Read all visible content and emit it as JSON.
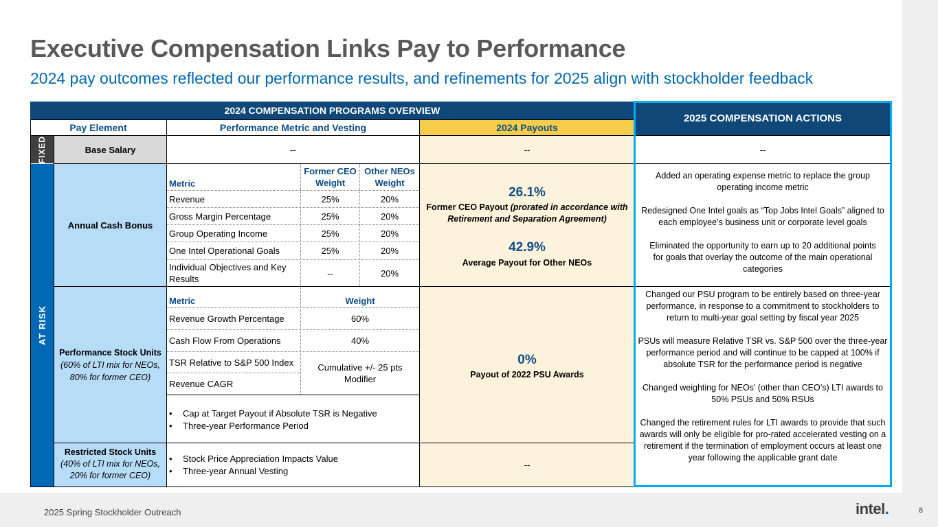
{
  "title": "Executive Compensation Links Pay to Performance",
  "subtitle": "2024 pay outcomes reflected our performance results, and refinements for 2025 align with stockholder feedback",
  "table": {
    "overview_header": "2024 COMPENSATION PROGRAMS OVERVIEW",
    "actions_header": "2025 COMPENSATION ACTIONS",
    "col_headers": {
      "pay_element": "Pay Element",
      "metric_vesting": "Performance Metric and Vesting",
      "payouts": "2024 Payouts"
    },
    "side_labels": {
      "fixed": "FIXED",
      "at_risk": "AT RISK"
    },
    "base_salary": {
      "label": "Base Salary",
      "metric": "--",
      "payout": "--",
      "action": "--"
    },
    "annual_cash_bonus": {
      "label": "Annual Cash Bonus",
      "headers": {
        "metric": "Metric",
        "ceo_weight": "Former CEO Weight",
        "neo_weight": "Other NEOs Weight"
      },
      "rows": [
        {
          "metric": "Revenue",
          "ceo": "25%",
          "neo": "20%"
        },
        {
          "metric": "Gross Margin Percentage",
          "ceo": "25%",
          "neo": "20%"
        },
        {
          "metric": "Group Operating Income",
          "ceo": "25%",
          "neo": "20%"
        },
        {
          "metric": "One Intel Operational Goals",
          "ceo": "25%",
          "neo": "20%"
        },
        {
          "metric": "Individual Objectives and Key Results",
          "ceo": "--",
          "neo": "20%"
        }
      ],
      "payout_ceo_value": "26.1%",
      "payout_ceo_label": "Former CEO Payout",
      "payout_ceo_note": "(prorated in accordance with Retirement and Separation Agreement)",
      "payout_neo_value": "42.9%",
      "payout_neo_label": "Average Payout for Other NEOs",
      "actions": [
        "Added an operating expense metric to replace the group operating income metric",
        "Redesigned One Intel goals as “Top Jobs Intel Goals” aligned to each employee’s business unit or corporate level goals",
        "Eliminated the opportunity to earn up to 20 additional points for goals that overlay the outcome of the main operational categories"
      ]
    },
    "psu": {
      "label": "Performance Stock Units",
      "sublabel": "(60% of LTI mix for NEOs, 80% for former CEO)",
      "headers": {
        "metric": "Metric",
        "weight": "Weight"
      },
      "rows": [
        {
          "metric": "Revenue Growth Percentage",
          "weight": "60%"
        },
        {
          "metric": "Cash Flow From Operations",
          "weight": "40%"
        },
        {
          "metric": "TSR Relative to S&P 500 Index"
        },
        {
          "metric": "Revenue CAGR"
        }
      ],
      "modifier": "Cumulative +/- 25 pts Modifier",
      "bullets": [
        "Cap at Target Payout if Absolute TSR is Negative",
        "Three-year Performance Period"
      ],
      "payout_value": "0%",
      "payout_label": "Payout of 2022 PSU Awards",
      "actions": [
        "Changed our PSU program to be entirely based on three-year performance, in response to a commitment to stockholders to return to multi-year goal setting by fiscal year 2025",
        "PSUs will measure Relative TSR vs. S&P 500 over the three-year performance period and will continue to be capped at 100% if absolute TSR for the performance period is negative",
        "Changed weighting for NEOs’ (other than CEO’s) LTI awards to 50% PSUs and 50% RSUs",
        "Changed the retirement rules for LTI awards to provide that such awards will only be eligible for pro-rated accelerated vesting on a retirement if the termination of employment occurs at least one year following the applicable grant date"
      ]
    },
    "rsu": {
      "label": "Restricted Stock Units",
      "sublabel": "(40% of LTI mix for NEOs, 20% for former CEO)",
      "bullets": [
        "Stock Price Appreciation Impacts Value",
        "Three-year Annual Vesting"
      ],
      "payout": "--"
    }
  },
  "footer": {
    "text": "2025 Spring Stockholder Outreach",
    "logo": "intel",
    "page": "8"
  },
  "colors": {
    "navy": "#0e4778",
    "blue": "#0068b5",
    "cyan": "#00aeef",
    "yellow": "#f6cd4a",
    "cream": "#fdf3dc",
    "light_blue": "#b7dcf8"
  }
}
